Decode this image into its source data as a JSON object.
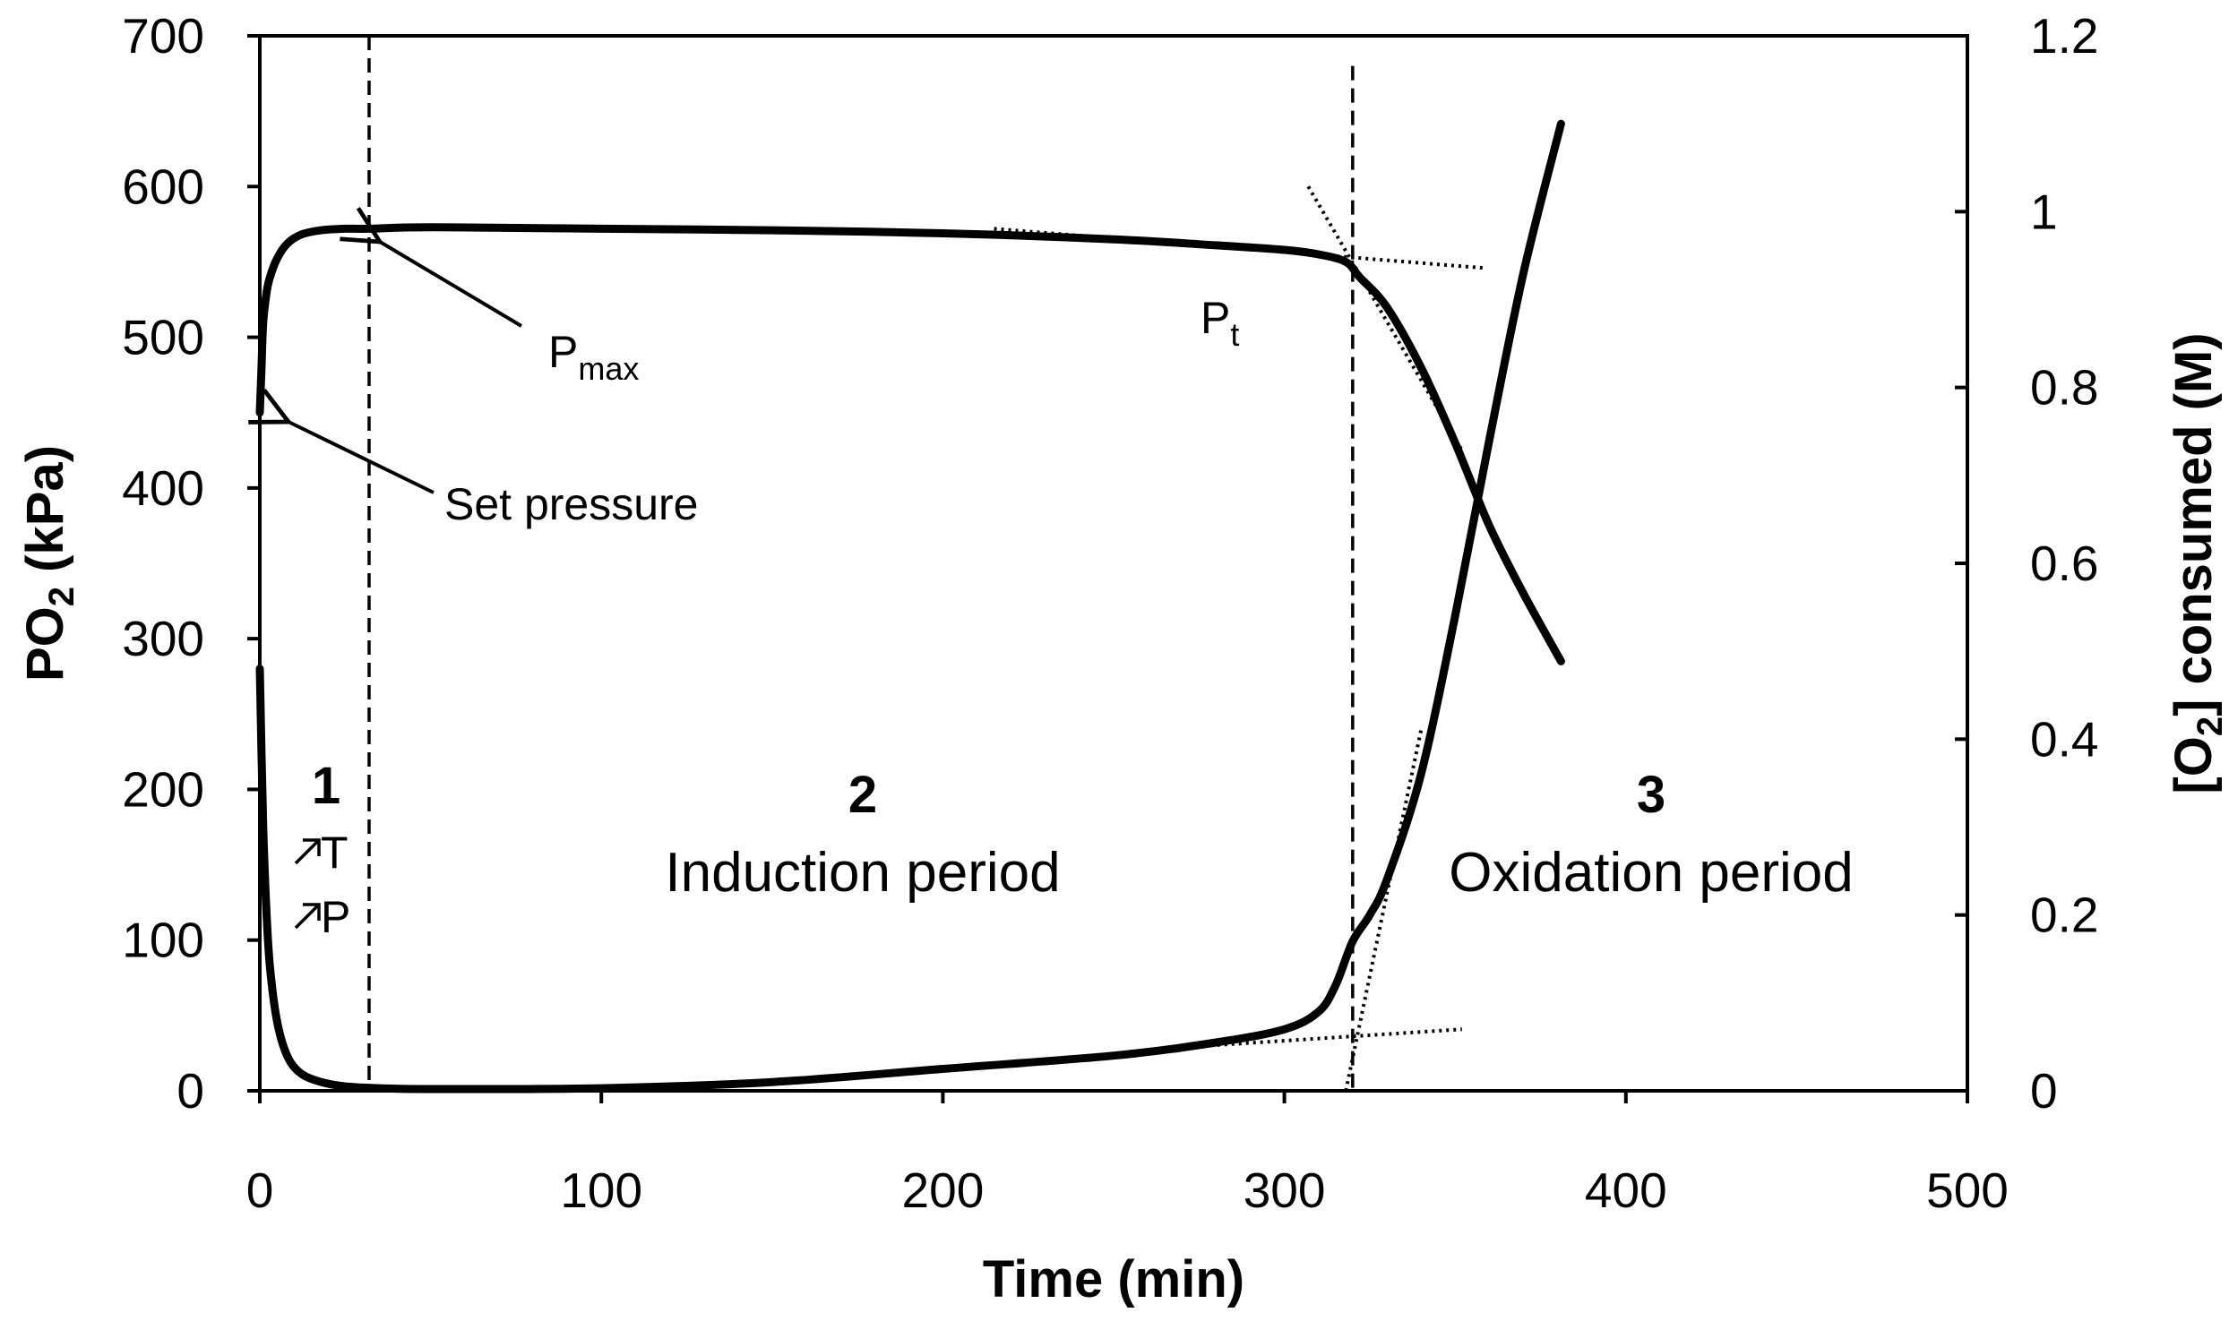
{
  "chart_data": {
    "type": "line",
    "xlabel": "Time (min)",
    "ylabel_left": {
      "main": "PO",
      "sub": "2",
      "rest": " (kPa)"
    },
    "ylabel_right": {
      "pre": "[O",
      "sub": "2",
      "rest": "] consumed (M)"
    },
    "xlim": [
      0,
      500
    ],
    "ylim_left": [
      0,
      700
    ],
    "ylim_right": [
      0,
      1.2
    ],
    "xticks": [
      0,
      100,
      200,
      300,
      400,
      500
    ],
    "yticks_left": [
      0,
      100,
      200,
      300,
      400,
      500,
      600,
      700
    ],
    "yticks_right": [
      "0",
      "0.2",
      "0.4",
      "0.6",
      "0.8",
      "1",
      "1.2"
    ],
    "yticks_right_values": [
      0,
      0.2,
      0.4,
      0.6,
      0.8,
      1.0,
      1.2
    ],
    "series": [
      {
        "name": "PO2",
        "axis": "left",
        "x": [
          0,
          0.5,
          1,
          2,
          3,
          5,
          8,
          12,
          18,
          25,
          32,
          50,
          100,
          150,
          200,
          250,
          280,
          300,
          310,
          318,
          322,
          330,
          340,
          350,
          360,
          370,
          381
        ],
        "y": [
          450,
          480,
          510,
          530,
          540,
          552,
          562,
          568,
          571,
          572,
          572,
          573,
          572,
          571,
          569,
          565,
          561,
          558,
          555,
          550,
          540,
          520,
          480,
          430,
          375,
          330,
          285
        ]
      },
      {
        "name": "[O2] consumed",
        "axis": "right",
        "x": [
          0,
          1,
          2,
          3,
          5,
          8,
          12,
          18,
          25,
          35,
          50,
          100,
          150,
          200,
          250,
          280,
          300,
          310,
          315,
          320,
          325,
          330,
          340,
          350,
          360,
          370,
          381
        ],
        "y": [
          0.48,
          0.3,
          0.2,
          0.14,
          0.08,
          0.04,
          0.02,
          0.01,
          0.005,
          0.003,
          0.002,
          0.003,
          0.01,
          0.025,
          0.04,
          0.055,
          0.07,
          0.09,
          0.12,
          0.17,
          0.2,
          0.24,
          0.36,
          0.54,
          0.74,
          0.93,
          1.1
        ]
      }
    ],
    "tangent_lines": [
      {
        "axis": "left",
        "x": [
          215,
          358
        ],
        "y": [
          572,
          546
        ]
      },
      {
        "axis": "left",
        "x": [
          307,
          352
        ],
        "y": [
          600,
          425
        ]
      },
      {
        "axis": "right",
        "x": [
          272,
          352
        ],
        "y": [
          0.05,
          0.07
        ]
      },
      {
        "axis": "right",
        "x": [
          318,
          340
        ],
        "y": [
          0.0,
          0.41
        ]
      }
    ],
    "vertical_markers": [
      {
        "x": 32,
        "ymax_left": 700
      },
      {
        "x": 320,
        "ymax_left": 680
      }
    ],
    "annotations": {
      "pmax": {
        "main": "P",
        "sub": "max"
      },
      "set_pressure": "Set pressure",
      "pt": {
        "main": "P",
        "sub": "t"
      }
    },
    "regions": [
      {
        "number": "1",
        "arrow_lines": [
          "T",
          "P"
        ]
      },
      {
        "number": "2",
        "name": "Induction period"
      },
      {
        "number": "3",
        "name": "Oxidation period"
      }
    ]
  },
  "colors": {
    "line": "#000000",
    "background": "#ffffff"
  },
  "icons": {
    "arrow": "north-east-arrow-icon"
  }
}
